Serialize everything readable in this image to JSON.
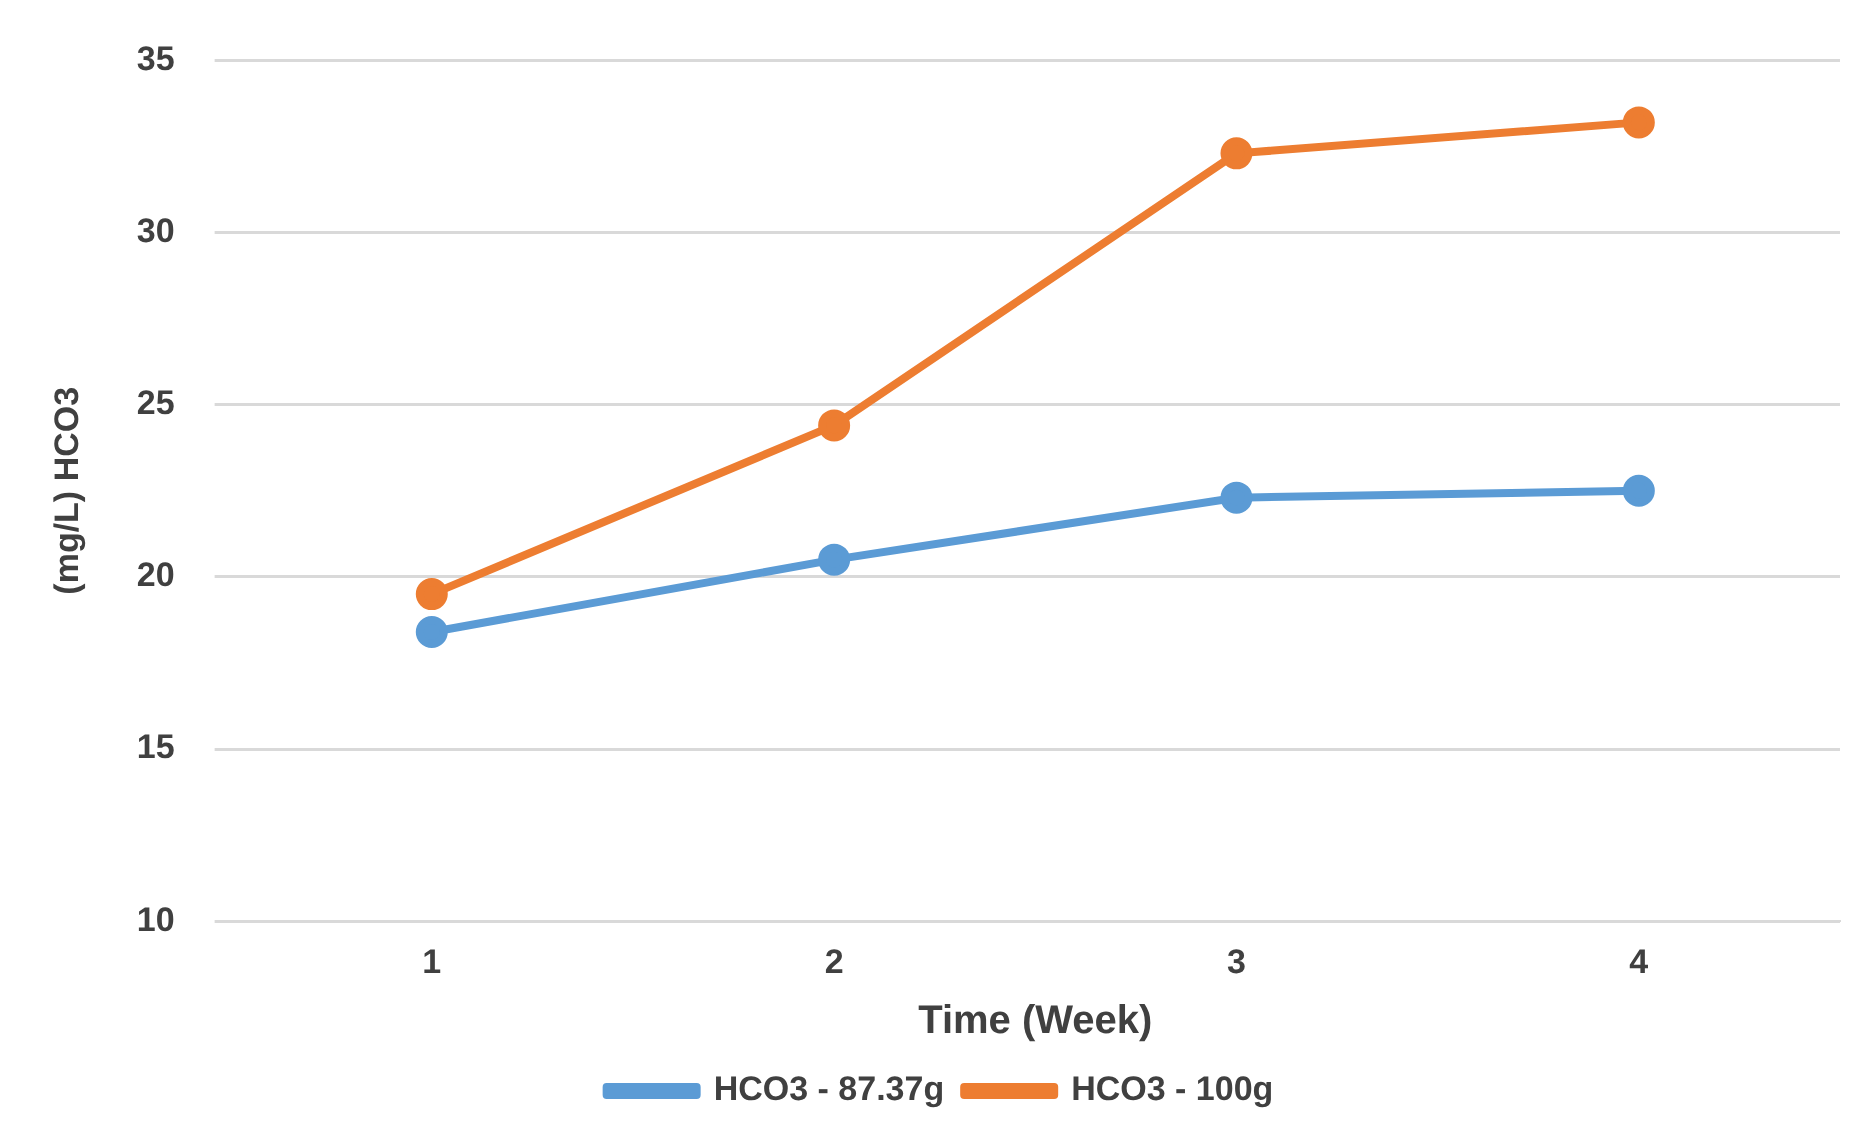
{
  "chart_data": {
    "type": "line",
    "xlabel": "Time (Week)",
    "ylabel": "(mg/L) HCO3",
    "categories": [
      "1",
      "2",
      "3",
      "4"
    ],
    "series": [
      {
        "name": "HCO3 - 87.37g",
        "color": "#5b9bd5",
        "values": [
          18.4,
          20.5,
          22.3,
          22.5
        ]
      },
      {
        "name": "HCO3 - 100g",
        "color": "#ed7d31",
        "values": [
          19.5,
          24.4,
          32.3,
          33.2
        ]
      }
    ],
    "ylim": [
      10,
      35
    ],
    "yticks": [
      10,
      15,
      20,
      25,
      30,
      35
    ],
    "grid": "y",
    "legend": "bottom",
    "marker": "circle",
    "line_style": "solid"
  }
}
